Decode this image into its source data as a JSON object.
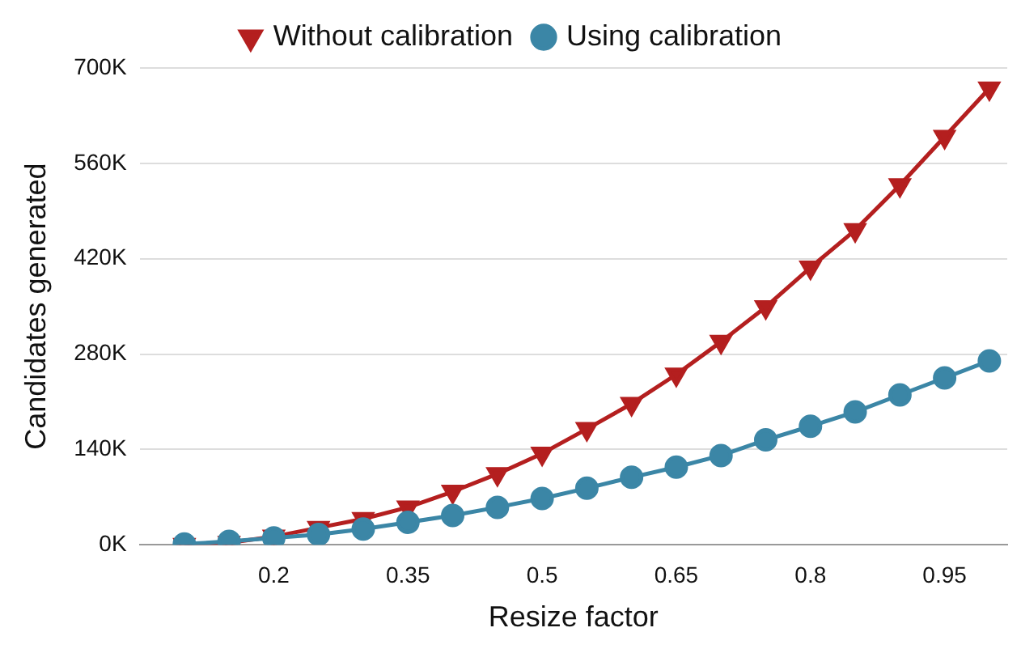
{
  "chart_data": {
    "type": "line",
    "xlabel": "Resize factor",
    "ylabel": "Candidates generated",
    "x": [
      0.1,
      0.15,
      0.2,
      0.25,
      0.3,
      0.35,
      0.4,
      0.45,
      0.5,
      0.55,
      0.6,
      0.65,
      0.7,
      0.75,
      0.8,
      0.85,
      0.9,
      0.95,
      1.0
    ],
    "series": [
      {
        "name": "Without calibration",
        "color": "#b41f1f",
        "marker": "triangle",
        "values": [
          0,
          3000,
          12000,
          25000,
          38000,
          55000,
          78000,
          104000,
          134000,
          170000,
          207000,
          250000,
          298000,
          349000,
          407000,
          462000,
          528000,
          599000,
          670000
        ]
      },
      {
        "name": "Using calibration",
        "color": "#3b86a6",
        "marker": "circle",
        "values": [
          1000,
          5000,
          10000,
          15000,
          23000,
          33000,
          43000,
          55000,
          68000,
          83000,
          99000,
          114000,
          131000,
          154000,
          174000,
          195000,
          220000,
          245000,
          270000
        ]
      }
    ],
    "xlim": [
      0.05,
      1.02
    ],
    "xticks": [
      0.2,
      0.35,
      0.5,
      0.65,
      0.8,
      0.95
    ],
    "ylim": [
      0,
      700000
    ],
    "yticks": [
      {
        "value": 0,
        "label": "0K"
      },
      {
        "value": 140000,
        "label": "140K"
      },
      {
        "value": 280000,
        "label": "280K"
      },
      {
        "value": 420000,
        "label": "420K"
      },
      {
        "value": 560000,
        "label": "560K"
      },
      {
        "value": 700000,
        "label": "700K"
      }
    ],
    "grid": "y",
    "legend": "top"
  }
}
